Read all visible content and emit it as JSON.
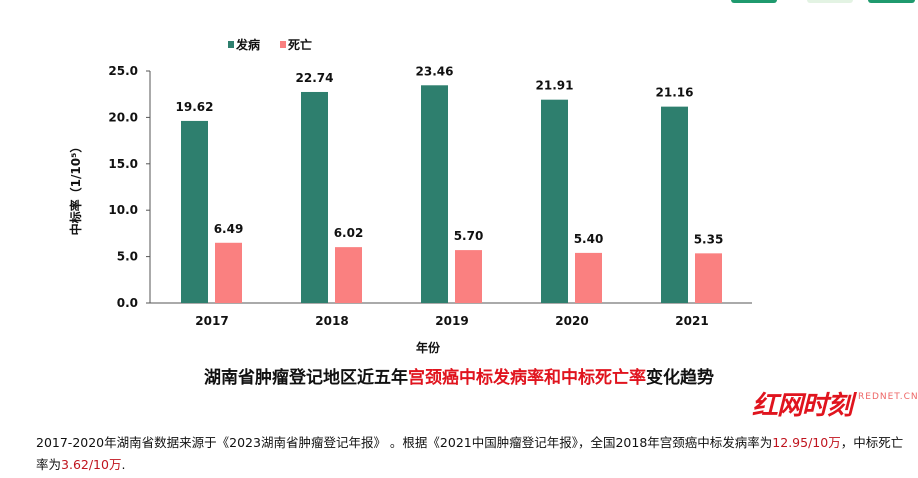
{
  "chart_data": {
    "type": "bar",
    "categories": [
      "2017",
      "2018",
      "2019",
      "2020",
      "2021"
    ],
    "series": [
      {
        "name": "发病",
        "color": "#2e7f6e",
        "values": [
          19.62,
          22.74,
          23.46,
          21.91,
          21.16
        ]
      },
      {
        "name": "死亡",
        "color": "#fa8080",
        "values": [
          6.49,
          6.02,
          5.7,
          5.4,
          5.35
        ]
      }
    ],
    "xlabel": "年份",
    "ylabel": "中标率（1/10⁵）",
    "ylim": [
      0,
      25
    ],
    "yticks": [
      "0.0",
      "5.0",
      "10.0",
      "15.0",
      "20.0",
      "25.0"
    ],
    "legend": "top-left",
    "grid": false
  },
  "caption": {
    "part1": "湖南省肿瘤登记地区近五年",
    "part2": "宫颈癌中标发病率和中标死亡率",
    "part3": "变化趋势"
  },
  "note": {
    "t1": "2017-2020年湖南省数据来源于《2023湖南省肿瘤登记年报》 。根据《2021中国肿瘤登记年报》，全国2018年宫颈癌中标发病率为",
    "v1": "12.95/10万",
    "t2": "，中标死亡率为",
    "v2": "3.62/10万",
    "t3": "."
  },
  "watermark": {
    "logo": "红网时刻",
    "sub": "REDNET.CN"
  }
}
